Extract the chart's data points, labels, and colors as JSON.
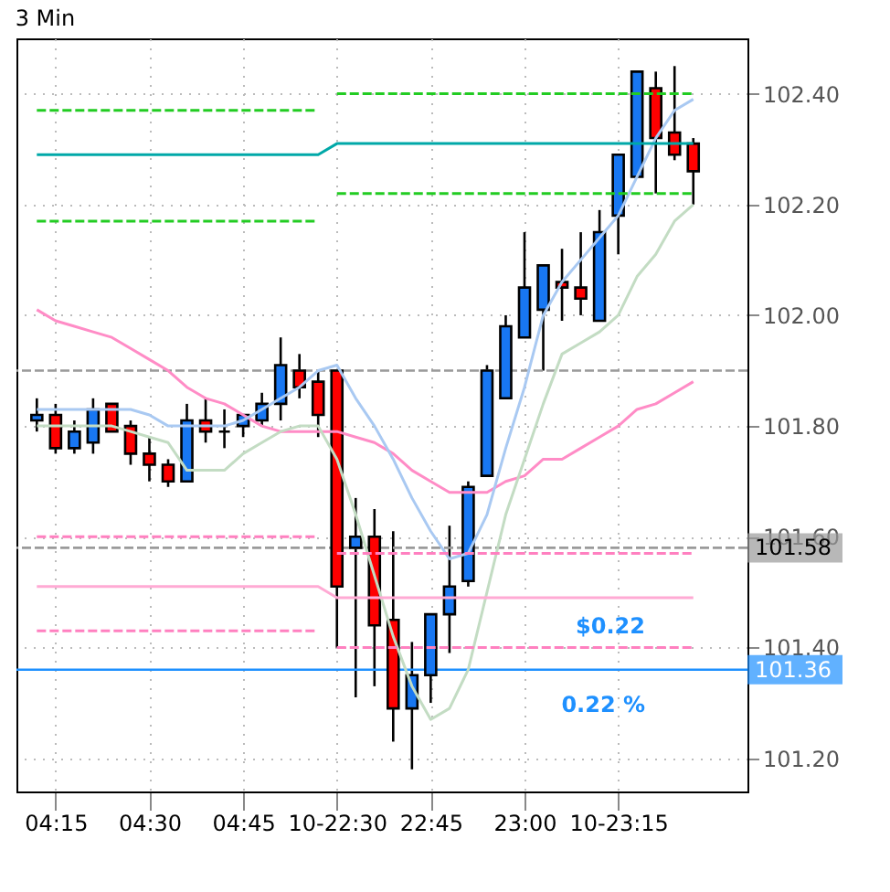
{
  "chart_data": {
    "type": "candlestick",
    "title": "3 Min",
    "categories": [
      null,
      "04:15",
      null,
      null,
      null,
      null,
      "04:30",
      null,
      null,
      null,
      null,
      "04:45",
      null,
      null,
      null,
      null,
      "10-22:30",
      null,
      null,
      null,
      null,
      "22:45",
      null,
      null,
      null,
      null,
      "23:00",
      null,
      null,
      null,
      null,
      "10-23:15",
      null,
      null,
      null,
      null
    ],
    "ohlc": [
      [
        101.81,
        101.85,
        101.79,
        101.82
      ],
      [
        101.82,
        101.84,
        101.75,
        101.76
      ],
      [
        101.76,
        101.81,
        101.75,
        101.79
      ],
      [
        101.77,
        101.85,
        101.75,
        101.83
      ],
      [
        101.84,
        101.84,
        101.79,
        101.79
      ],
      [
        101.8,
        101.81,
        101.73,
        101.75
      ],
      [
        101.75,
        101.78,
        101.7,
        101.73
      ],
      [
        101.73,
        101.74,
        101.69,
        101.7
      ],
      [
        101.7,
        101.84,
        101.7,
        101.81
      ],
      [
        101.81,
        101.85,
        101.77,
        101.79
      ],
      [
        101.79,
        101.83,
        101.76,
        101.79
      ],
      [
        101.8,
        101.82,
        101.78,
        101.82
      ],
      [
        101.81,
        101.86,
        101.8,
        101.84
      ],
      [
        101.84,
        101.96,
        101.81,
        101.91
      ],
      [
        101.9,
        101.93,
        101.85,
        101.87
      ],
      [
        101.88,
        101.9,
        101.78,
        101.82
      ],
      [
        101.9,
        101.9,
        101.4,
        101.51
      ],
      [
        101.58,
        101.67,
        101.31,
        101.6
      ],
      [
        101.6,
        101.65,
        101.33,
        101.44
      ],
      [
        101.45,
        101.61,
        101.23,
        101.29
      ],
      [
        101.29,
        101.41,
        101.18,
        101.35
      ],
      [
        101.35,
        101.46,
        101.3,
        101.46
      ],
      [
        101.46,
        101.62,
        101.39,
        101.51
      ],
      [
        101.52,
        101.7,
        101.51,
        101.69
      ],
      [
        101.71,
        101.91,
        101.71,
        101.9
      ],
      [
        101.85,
        102.0,
        101.85,
        101.98
      ],
      [
        101.96,
        102.15,
        101.96,
        102.05
      ],
      [
        102.01,
        102.09,
        101.9,
        102.09
      ],
      [
        102.06,
        102.12,
        101.99,
        102.05
      ],
      [
        102.05,
        102.15,
        102.0,
        102.03
      ],
      [
        101.99,
        102.19,
        101.99,
        102.15
      ],
      [
        102.18,
        102.29,
        102.11,
        102.29
      ],
      [
        102.25,
        102.44,
        102.25,
        102.44
      ],
      [
        102.41,
        102.44,
        102.22,
        102.32
      ],
      [
        102.33,
        102.45,
        102.28,
        102.29
      ],
      [
        102.31,
        102.32,
        102.2,
        102.26
      ]
    ],
    "colors": [
      "#1877f2",
      "#ff0000",
      "#1877f2",
      "#1877f2",
      "#ff0000",
      "#ff0000",
      "#ff0000",
      "#ff0000",
      "#1877f2",
      "#ff0000",
      "#000000",
      "#1877f2",
      "#1877f2",
      "#1877f2",
      "#ff0000",
      "#ff0000",
      "#ff0000",
      "#1877f2",
      "#ff0000",
      "#ff0000",
      "#1877f2",
      "#1877f2",
      "#1877f2",
      "#1877f2",
      "#1877f2",
      "#1877f2",
      "#1877f2",
      "#1877f2",
      "#ff0000",
      "#ff0000",
      "#1877f2",
      "#1877f2",
      "#1877f2",
      "#ff0000",
      "#ff0000",
      "#ff0000"
    ],
    "series": [
      {
        "type": "line",
        "color": "#ff8cc6",
        "values": [
          102.01,
          101.99,
          101.98,
          101.97,
          101.96,
          101.94,
          101.92,
          101.9,
          101.87,
          101.85,
          101.84,
          101.82,
          101.8,
          101.79,
          101.79,
          101.79,
          101.79,
          101.78,
          101.77,
          101.75,
          101.72,
          101.7,
          101.68,
          101.68,
          101.68,
          101.7,
          101.71,
          101.74,
          101.74,
          101.76,
          101.78,
          101.8,
          101.83,
          101.84,
          101.86,
          101.88
        ]
      },
      {
        "type": "line",
        "color": "#c3dcc3",
        "values": [
          101.8,
          101.8,
          101.8,
          101.8,
          101.8,
          101.79,
          101.78,
          101.77,
          101.72,
          101.72,
          101.72,
          101.75,
          101.77,
          101.79,
          101.8,
          101.8,
          101.74,
          101.64,
          101.53,
          101.42,
          101.33,
          101.27,
          101.29,
          101.36,
          101.5,
          101.64,
          101.74,
          101.84,
          101.93,
          101.95,
          101.97,
          102.0,
          102.07,
          102.11,
          102.17,
          102.2
        ]
      },
      {
        "type": "line",
        "color": "#a9c9f2",
        "values": [
          101.83,
          101.83,
          101.83,
          101.83,
          101.83,
          101.83,
          101.82,
          101.8,
          101.8,
          101.8,
          101.8,
          101.81,
          101.83,
          101.85,
          101.87,
          101.9,
          101.91,
          101.85,
          101.8,
          101.74,
          101.67,
          101.61,
          101.56,
          101.57,
          101.64,
          101.76,
          101.87,
          102.0,
          102.06,
          102.1,
          102.14,
          102.18,
          102.25,
          102.32,
          102.37,
          102.39
        ]
      },
      {
        "type": "line",
        "color": "#00a8a8",
        "values": [
          102.29,
          102.29,
          102.29,
          102.29,
          102.29,
          102.29,
          102.29,
          102.29,
          102.29,
          102.29,
          102.29,
          102.29,
          102.29,
          102.29,
          102.29,
          102.29,
          102.31,
          102.31,
          102.31,
          102.31,
          102.31,
          102.31,
          102.31,
          102.31,
          102.31,
          102.31,
          102.31,
          102.31,
          102.31,
          102.31,
          102.31,
          102.31,
          102.31,
          102.31,
          102.31,
          102.31
        ]
      },
      {
        "type": "line",
        "color": "#22cc22",
        "line_style": "dashed",
        "values": [
          102.37,
          102.37,
          102.37,
          102.37,
          102.37,
          102.37,
          102.37,
          102.37,
          102.37,
          102.37,
          102.37,
          102.37,
          102.37,
          102.37,
          102.37,
          102.37,
          null,
          null,
          null,
          null,
          null,
          null,
          null,
          null,
          null,
          null,
          null,
          null,
          null,
          null,
          null,
          null,
          null,
          null,
          null,
          null
        ]
      },
      {
        "type": "line",
        "color": "#22cc22",
        "line_style": "dashed",
        "values": [
          null,
          null,
          null,
          null,
          null,
          null,
          null,
          null,
          null,
          null,
          null,
          null,
          null,
          null,
          null,
          null,
          102.4,
          102.4,
          102.4,
          102.4,
          102.4,
          102.4,
          102.4,
          102.4,
          102.4,
          102.4,
          102.4,
          102.4,
          102.4,
          102.4,
          102.4,
          102.4,
          102.4,
          102.4,
          102.4,
          102.4
        ]
      },
      {
        "type": "line",
        "color": "#22cc22",
        "line_style": "dashed",
        "values": [
          102.17,
          102.17,
          102.17,
          102.17,
          102.17,
          102.17,
          102.17,
          102.17,
          102.17,
          102.17,
          102.17,
          102.17,
          102.17,
          102.17,
          102.17,
          102.17,
          null,
          null,
          null,
          null,
          null,
          null,
          null,
          null,
          null,
          null,
          null,
          null,
          null,
          null,
          null,
          null,
          null,
          null,
          null,
          null
        ]
      },
      {
        "type": "line",
        "color": "#22cc22",
        "line_style": "dashed",
        "values": [
          null,
          null,
          null,
          null,
          null,
          null,
          null,
          null,
          null,
          null,
          null,
          null,
          null,
          null,
          null,
          null,
          102.22,
          102.22,
          102.22,
          102.22,
          102.22,
          102.22,
          102.22,
          102.22,
          102.22,
          102.22,
          102.22,
          102.22,
          102.22,
          102.22,
          102.22,
          102.22,
          102.22,
          102.22,
          102.22,
          102.22
        ]
      },
      {
        "type": "line",
        "color": "#ff80c0",
        "line_style": "dashed",
        "values": [
          101.6,
          101.6,
          101.6,
          101.6,
          101.6,
          101.6,
          101.6,
          101.6,
          101.6,
          101.6,
          101.6,
          101.6,
          101.6,
          101.6,
          101.6,
          101.6,
          null,
          null,
          null,
          null,
          null,
          null,
          null,
          null,
          null,
          null,
          null,
          null,
          null,
          null,
          null,
          null,
          null,
          null,
          null,
          null
        ]
      },
      {
        "type": "line",
        "color": "#ff80c0",
        "line_style": "dashed",
        "values": [
          null,
          null,
          null,
          null,
          null,
          null,
          null,
          null,
          null,
          null,
          null,
          null,
          null,
          null,
          null,
          null,
          101.57,
          101.57,
          101.57,
          101.57,
          101.57,
          101.57,
          101.57,
          101.57,
          101.57,
          101.57,
          101.57,
          101.57,
          101.57,
          101.57,
          101.57,
          101.57,
          101.57,
          101.57,
          101.57,
          101.57
        ]
      },
      {
        "type": "line",
        "color": "#ffaad4",
        "values": [
          101.51,
          101.51,
          101.51,
          101.51,
          101.51,
          101.51,
          101.51,
          101.51,
          101.51,
          101.51,
          101.51,
          101.51,
          101.51,
          101.51,
          101.51,
          101.51,
          101.49,
          101.49,
          101.49,
          101.49,
          101.49,
          101.49,
          101.49,
          101.49,
          101.49,
          101.49,
          101.49,
          101.49,
          101.49,
          101.49,
          101.49,
          101.49,
          101.49,
          101.49,
          101.49,
          101.49
        ]
      },
      {
        "type": "line",
        "color": "#ff80c0",
        "line_style": "dashed",
        "values": [
          101.43,
          101.43,
          101.43,
          101.43,
          101.43,
          101.43,
          101.43,
          101.43,
          101.43,
          101.43,
          101.43,
          101.43,
          101.43,
          101.43,
          101.43,
          101.43,
          null,
          null,
          null,
          null,
          null,
          null,
          null,
          null,
          null,
          null,
          null,
          null,
          null,
          null,
          null,
          null,
          null,
          null,
          null,
          null
        ]
      },
      {
        "type": "line",
        "color": "#ff80c0",
        "line_style": "dashed",
        "values": [
          null,
          null,
          null,
          null,
          null,
          null,
          null,
          null,
          null,
          null,
          null,
          null,
          null,
          null,
          null,
          null,
          101.4,
          101.4,
          101.4,
          101.4,
          101.4,
          101.4,
          101.4,
          101.4,
          101.4,
          101.4,
          101.4,
          101.4,
          101.4,
          101.4,
          101.4,
          101.4,
          101.4,
          101.4,
          101.4,
          101.4
        ]
      }
    ],
    "ref_lines": [
      {
        "axis": "y",
        "value": 101.9,
        "color": "#999999",
        "line_style": "dashed"
      },
      {
        "axis": "y",
        "value": 101.58,
        "label": "101.58",
        "color": "#9a9a9a",
        "line_style": "dashed"
      },
      {
        "axis": "y",
        "value": 101.36,
        "label": "101.36",
        "color": "#1e90ff",
        "line_style": "solid"
      }
    ],
    "annotations": [
      "$0.22",
      "0.22 %"
    ],
    "ylim": [
      101.14,
      102.5
    ],
    "yticks": [
      {
        "value": 101.2,
        "label": "101.20"
      },
      {
        "value": 101.4,
        "label": "101.40"
      },
      {
        "value": 101.6,
        "label": "101.60"
      },
      {
        "value": 101.8,
        "label": "101.80"
      },
      {
        "value": 102.0,
        "label": "102.00"
      },
      {
        "value": 102.2,
        "label": "102.20"
      },
      {
        "value": 102.4,
        "label": "102.40"
      }
    ],
    "grid": true
  }
}
